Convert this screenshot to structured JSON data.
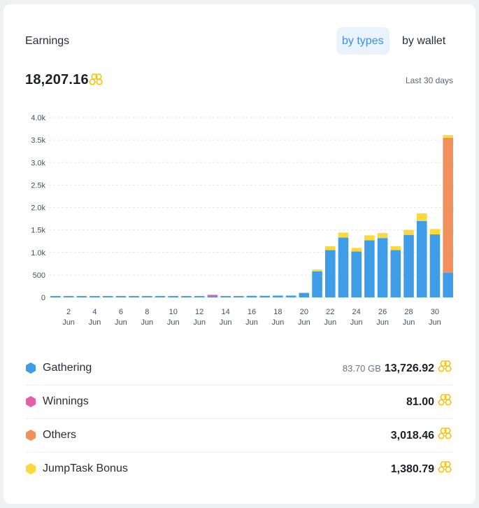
{
  "header": {
    "title": "Earnings",
    "tabs": [
      {
        "label": "by types",
        "active": true
      },
      {
        "label": "by wallet",
        "active": false
      }
    ]
  },
  "summary": {
    "total": "18,207.16",
    "coin_icon": "honeycomb-icon",
    "period": "Last 30 days"
  },
  "colors": {
    "Gathering": "#3f9de8",
    "Winnings": "#e35fa7",
    "Others": "#f0905a",
    "JumpTask Bonus": "#fdd83b"
  },
  "chart_data": {
    "type": "bar",
    "stacked": true,
    "title": "",
    "xlabel": "",
    "ylabel": "",
    "ylim": [
      0,
      4000
    ],
    "yticks": [
      0,
      500,
      1000,
      1500,
      2000,
      2500,
      3000,
      3500,
      4000
    ],
    "ytick_labels": [
      "0",
      "500",
      "1.0k",
      "1.5k",
      "2.0k",
      "2.5k",
      "3.0k",
      "3.5k",
      "4.0k"
    ],
    "grid": true,
    "categories": [
      "1 Jun",
      "2 Jun",
      "3 Jun",
      "4 Jun",
      "5 Jun",
      "6 Jun",
      "7 Jun",
      "8 Jun",
      "9 Jun",
      "10 Jun",
      "11 Jun",
      "12 Jun",
      "13 Jun",
      "14 Jun",
      "15 Jun",
      "16 Jun",
      "17 Jun",
      "18 Jun",
      "19 Jun",
      "20 Jun",
      "21 Jun",
      "22 Jun",
      "23 Jun",
      "24 Jun",
      "25 Jun",
      "26 Jun",
      "27 Jun",
      "28 Jun",
      "29 Jun",
      "30 Jun",
      "1 Jul"
    ],
    "x_tick_labels": [
      {
        "index": 1,
        "day": "2",
        "month": "Jun"
      },
      {
        "index": 3,
        "day": "4",
        "month": "Jun"
      },
      {
        "index": 5,
        "day": "6",
        "month": "Jun"
      },
      {
        "index": 7,
        "day": "8",
        "month": "Jun"
      },
      {
        "index": 9,
        "day": "10",
        "month": "Jun"
      },
      {
        "index": 11,
        "day": "12",
        "month": "Jun"
      },
      {
        "index": 13,
        "day": "14",
        "month": "Jun"
      },
      {
        "index": 15,
        "day": "16",
        "month": "Jun"
      },
      {
        "index": 17,
        "day": "18",
        "month": "Jun"
      },
      {
        "index": 19,
        "day": "20",
        "month": "Jun"
      },
      {
        "index": 21,
        "day": "22",
        "month": "Jun"
      },
      {
        "index": 23,
        "day": "24",
        "month": "Jun"
      },
      {
        "index": 25,
        "day": "26",
        "month": "Jun"
      },
      {
        "index": 27,
        "day": "28",
        "month": "Jun"
      },
      {
        "index": 29,
        "day": "30",
        "month": "Jun"
      }
    ],
    "series": [
      {
        "name": "Gathering",
        "values": [
          30,
          30,
          30,
          30,
          30,
          30,
          30,
          30,
          30,
          30,
          30,
          30,
          30,
          30,
          30,
          35,
          35,
          40,
          40,
          100,
          580,
          1050,
          1330,
          1020,
          1270,
          1320,
          1050,
          1390,
          1700,
          1400,
          550
        ]
      },
      {
        "name": "Winnings",
        "values": [
          0,
          0,
          0,
          0,
          0,
          0,
          0,
          0,
          0,
          0,
          0,
          0,
          20,
          0,
          0,
          0,
          0,
          0,
          0,
          0,
          0,
          0,
          0,
          0,
          0,
          0,
          0,
          0,
          0,
          0,
          0
        ]
      },
      {
        "name": "Others",
        "values": [
          0,
          0,
          0,
          0,
          0,
          0,
          0,
          0,
          0,
          0,
          0,
          0,
          10,
          0,
          0,
          0,
          0,
          0,
          0,
          0,
          0,
          0,
          0,
          0,
          0,
          0,
          0,
          0,
          0,
          0,
          3000
        ]
      },
      {
        "name": "JumpTask Bonus",
        "values": [
          0,
          0,
          0,
          0,
          0,
          0,
          0,
          0,
          0,
          0,
          0,
          0,
          0,
          0,
          0,
          0,
          0,
          0,
          0,
          0,
          40,
          90,
          110,
          80,
          110,
          110,
          90,
          110,
          170,
          120,
          60
        ]
      }
    ]
  },
  "legend": [
    {
      "name": "Gathering",
      "extra": "83.70 GB",
      "value": "13,726.92"
    },
    {
      "name": "Winnings",
      "extra": "",
      "value": "81.00"
    },
    {
      "name": "Others",
      "extra": "",
      "value": "3,018.46"
    },
    {
      "name": "JumpTask Bonus",
      "extra": "",
      "value": "1,380.79"
    }
  ]
}
